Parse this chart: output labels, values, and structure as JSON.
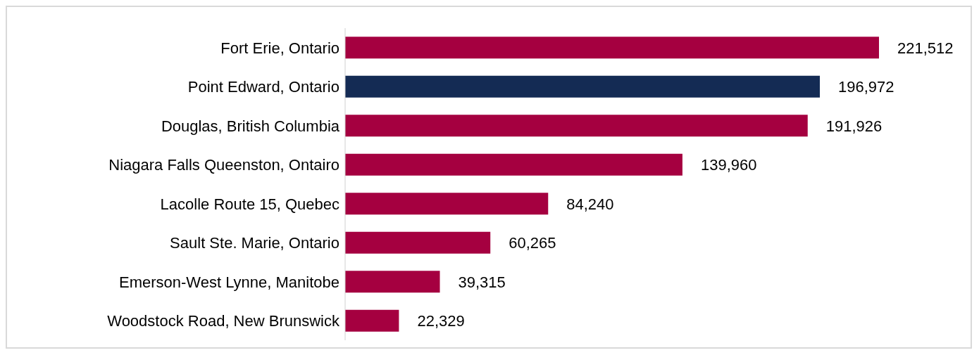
{
  "chart_data": {
    "type": "bar",
    "orientation": "horizontal",
    "categories": [
      "Fort Erie, Ontario",
      "Point Edward, Ontario",
      "Douglas, British Columbia",
      "Niagara Falls Queenston, Ontairo",
      "Lacolle Route 15, Quebec",
      "Sault Ste. Marie, Ontario",
      "Emerson-West Lynne, Manitobe",
      "Woodstock Road, New Brunswick"
    ],
    "values": [
      221512,
      196972,
      191926,
      139960,
      84240,
      60265,
      39315,
      22329
    ],
    "value_labels": [
      "221,512",
      "196,972",
      "191,926",
      "139,960",
      "84,240",
      "60,265",
      "39,315",
      "22,329"
    ],
    "colors": [
      "#a50040",
      "#142b54",
      "#a50040",
      "#a50040",
      "#a50040",
      "#a50040",
      "#a50040",
      "#a50040"
    ]
  }
}
